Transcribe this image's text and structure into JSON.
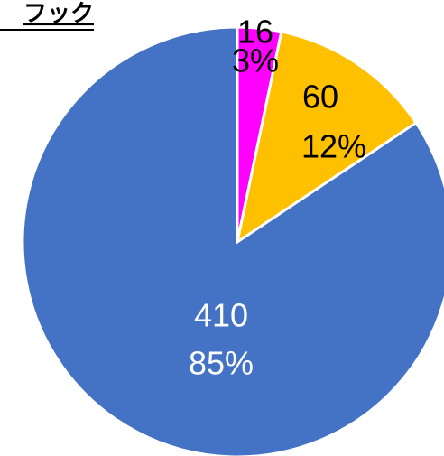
{
  "chart_data": {
    "type": "pie",
    "title": "フック",
    "categories": [
      null,
      null,
      null
    ],
    "values": [
      16,
      60,
      410
    ],
    "percents": [
      3,
      12,
      85
    ],
    "percent_labels": [
      "3%",
      "12%",
      "85%"
    ],
    "colors": [
      "#ff00ff",
      "#ffc000",
      "#4472c4"
    ]
  }
}
